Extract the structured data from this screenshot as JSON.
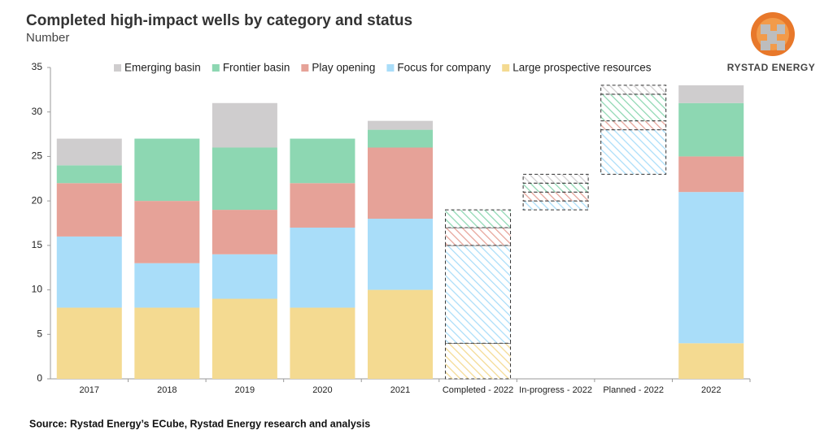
{
  "chart_data": {
    "type": "stacked_bar",
    "title": "Completed high-impact wells by category and status",
    "subtitle": "Number",
    "source": "Source: Rystad Energy’s ECube, Rystad Energy research and analysis",
    "logo_text": "RYSTAD ENERGY",
    "categories": [
      "2017",
      "2018",
      "2019",
      "2020",
      "2021",
      "Completed - 2022",
      "In-progress - 2022",
      "Planned - 2022",
      "2022"
    ],
    "hatched": [
      false,
      false,
      false,
      false,
      false,
      true,
      true,
      true,
      false
    ],
    "series": [
      {
        "name": "Large prospective resources",
        "color": "#f4da91",
        "values": [
          8,
          8,
          9,
          8,
          10,
          4,
          0,
          0,
          4
        ]
      },
      {
        "name": "Focus for company",
        "color": "#a9ddf9",
        "values": [
          8,
          5,
          5,
          9,
          8,
          11,
          1,
          5,
          17
        ]
      },
      {
        "name": "Play opening",
        "color": "#e6a298",
        "values": [
          6,
          7,
          5,
          5,
          8,
          2,
          1,
          1,
          4
        ]
      },
      {
        "name": "Frontier basin",
        "color": "#8dd7b2",
        "values": [
          2,
          7,
          7,
          5,
          2,
          2,
          1,
          3,
          6
        ]
      },
      {
        "name": "Emerging basin",
        "color": "#cfcdce",
        "values": [
          3,
          0,
          5,
          0,
          1,
          0,
          1,
          1,
          2
        ]
      }
    ],
    "ylim": [
      0,
      35
    ],
    "yticks": [
      0,
      5,
      10,
      15,
      20,
      25,
      30,
      35
    ],
    "grid": false
  }
}
